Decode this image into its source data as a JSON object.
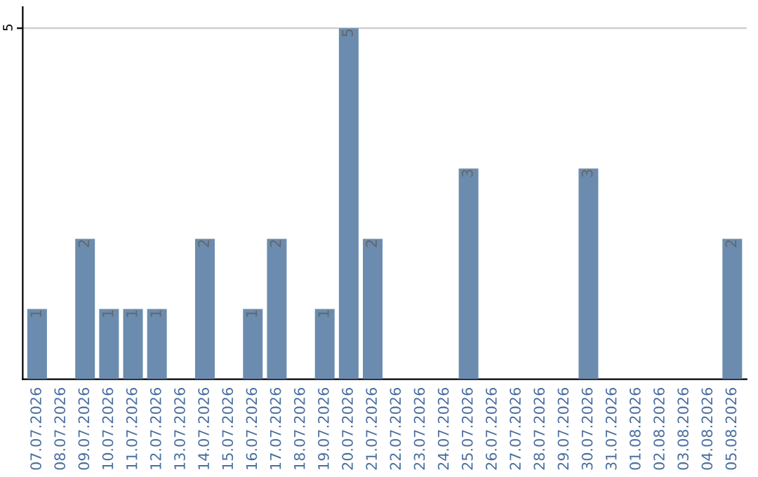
{
  "chart_data": {
    "type": "bar",
    "categories": [
      "07.07.2026",
      "08.07.2026",
      "09.07.2026",
      "10.07.2026",
      "11.07.2026",
      "12.07.2026",
      "13.07.2026",
      "14.07.2026",
      "15.07.2026",
      "16.07.2026",
      "17.07.2026",
      "18.07.2026",
      "19.07.2026",
      "20.07.2026",
      "21.07.2026",
      "22.07.2026",
      "23.07.2026",
      "24.07.2026",
      "25.07.2026",
      "26.07.2026",
      "27.07.2026",
      "28.07.2026",
      "29.07.2026",
      "30.07.2026",
      "31.07.2026",
      "01.08.2026",
      "02.08.2026",
      "03.08.2026",
      "04.08.2026",
      "05.08.2026"
    ],
    "values": [
      1,
      0,
      2,
      1,
      1,
      1,
      0,
      2,
      0,
      1,
      2,
      0,
      1,
      5,
      2,
      0,
      0,
      0,
      3,
      0,
      0,
      0,
      0,
      3,
      0,
      0,
      0,
      0,
      0,
      2
    ],
    "value_labels": [
      "1",
      null,
      "2",
      "1",
      "1",
      "1",
      null,
      "2",
      null,
      "1",
      "2",
      null,
      "1",
      "5",
      "2",
      null,
      null,
      null,
      "3",
      null,
      null,
      null,
      null,
      "3",
      null,
      null,
      null,
      null,
      null,
      "2"
    ],
    "color": "#6b8cae",
    "ylim": [
      0,
      5.3
    ],
    "yticks": [
      5
    ],
    "grid": "y"
  }
}
